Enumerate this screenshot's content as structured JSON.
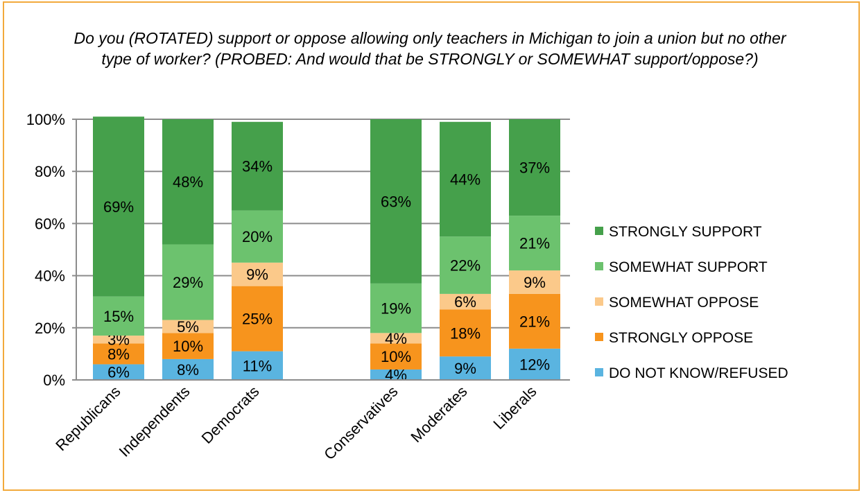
{
  "chart_data": {
    "type": "bar",
    "stacked": true,
    "title": "Do you (ROTATED) support or oppose allowing only teachers in Michigan to join a union but no other type of worker? (PROBED: And would that be STRONGLY or SOMEWHAT support/oppose?)",
    "categories": [
      "Republicans",
      "Independents",
      "Democrats",
      "Conservatives",
      "Moderates",
      "Liberals"
    ],
    "ylim": [
      0,
      100
    ],
    "yticks": [
      "0%",
      "20%",
      "40%",
      "60%",
      "80%",
      "100%"
    ],
    "grid": true,
    "legend_position": "right",
    "series": [
      {
        "name": "DO NOT KNOW/REFUSED",
        "color": "#5ab4e0",
        "values": [
          6,
          8,
          11,
          4,
          9,
          12
        ],
        "labels": [
          "6%",
          "8%",
          "11%",
          "4%",
          "9%",
          "12%"
        ]
      },
      {
        "name": "STRONGLY OPPOSE",
        "color": "#f7941d",
        "values": [
          8,
          10,
          25,
          10,
          18,
          21
        ],
        "labels": [
          "8%",
          "10%",
          "25%",
          "10%",
          "18%",
          "21%"
        ]
      },
      {
        "name": "SOMEWHAT OPPOSE",
        "color": "#fbc98a",
        "values": [
          3,
          5,
          9,
          4,
          6,
          9
        ],
        "labels": [
          "3%",
          "5%",
          "9%",
          "4%",
          "6%",
          "9%"
        ]
      },
      {
        "name": "SOMEWHAT SUPPORT",
        "color": "#6cc26e",
        "values": [
          15,
          29,
          20,
          19,
          22,
          21
        ],
        "labels": [
          "15%",
          "29%",
          "20%",
          "19%",
          "22%",
          "21%"
        ]
      },
      {
        "name": "STRONGLY SUPPORT",
        "color": "#45a04b",
        "values": [
          69,
          48,
          34,
          63,
          44,
          37
        ],
        "labels": [
          "69%",
          "48%",
          "34%",
          "63%",
          "44%",
          "37%"
        ]
      }
    ],
    "legend_order": [
      "STRONGLY SUPPORT",
      "SOMEWHAT SUPPORT",
      "SOMEWHAT OPPOSE",
      "STRONGLY OPPOSE",
      "DO NOT KNOW/REFUSED"
    ]
  }
}
